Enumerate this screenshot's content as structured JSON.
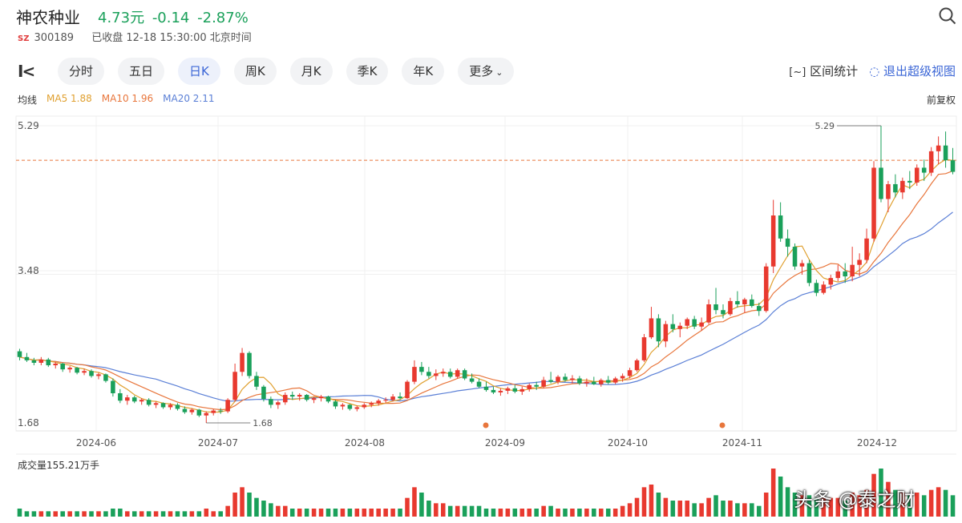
{
  "header": {
    "name": "神农种业",
    "price": "4.73元",
    "change": "-0.14",
    "change_pct": "-2.87%",
    "market": "SZ",
    "code": "300189",
    "status": "已收盘 12-18 15:30:00 北京时间"
  },
  "tabs": [
    "分时",
    "五日",
    "日K",
    "周K",
    "月K",
    "季K",
    "年K",
    "更多"
  ],
  "active_tab": "日K",
  "tools": {
    "range_stats": "区间统计",
    "exit_fullscreen": "退出超级视图"
  },
  "ma": {
    "label": "均线",
    "ma5": "MA5 1.88",
    "ma10": "MA10 1.96",
    "ma20": "MA20 2.11"
  },
  "adjust": "前复权",
  "volume_label": "成交量155.21万手",
  "watermark": "头条 @泰之财",
  "colors": {
    "up": "#e8392f",
    "down": "#1aa05a",
    "ma5": "#e0a030",
    "ma10": "#e8763c",
    "ma20": "#5a7fd6",
    "accent": "#3b66d6",
    "price_down": "#1aa05a"
  },
  "chart_data": {
    "type": "candlestick",
    "ylim": [
      1.68,
      5.29
    ],
    "y_ticks": [
      "5.29",
      "3.48",
      "1.68"
    ],
    "x_ticks": [
      "2024-06",
      "2024-07",
      "2024-08",
      "2024-09",
      "2024-10",
      "2024-11",
      "2024-12"
    ],
    "high_marker": "5.29",
    "low_marker": "1.68",
    "reference_price": 4.87,
    "ohlc": [
      [
        2.55,
        2.58,
        2.44,
        2.48
      ],
      [
        2.48,
        2.53,
        2.42,
        2.44
      ],
      [
        2.44,
        2.47,
        2.38,
        2.41
      ],
      [
        2.41,
        2.48,
        2.38,
        2.45
      ],
      [
        2.45,
        2.47,
        2.36,
        2.38
      ],
      [
        2.38,
        2.42,
        2.34,
        2.4
      ],
      [
        2.4,
        2.41,
        2.3,
        2.33
      ],
      [
        2.33,
        2.37,
        2.29,
        2.35
      ],
      [
        2.35,
        2.36,
        2.27,
        2.29
      ],
      [
        2.29,
        2.34,
        2.26,
        2.31
      ],
      [
        2.31,
        2.33,
        2.23,
        2.25
      ],
      [
        2.25,
        2.29,
        2.21,
        2.27
      ],
      [
        2.27,
        2.28,
        2.17,
        2.19
      ],
      [
        2.19,
        2.22,
        2.0,
        2.04
      ],
      [
        2.04,
        2.09,
        1.92,
        1.95
      ],
      [
        1.95,
        2.02,
        1.9,
        1.99
      ],
      [
        1.99,
        2.01,
        1.92,
        1.94
      ],
      [
        1.94,
        1.98,
        1.9,
        1.96
      ],
      [
        1.96,
        1.98,
        1.88,
        1.9
      ],
      [
        1.9,
        1.94,
        1.86,
        1.92
      ],
      [
        1.92,
        1.93,
        1.85,
        1.87
      ],
      [
        1.87,
        1.92,
        1.84,
        1.9
      ],
      [
        1.9,
        1.92,
        1.83,
        1.85
      ],
      [
        1.85,
        1.88,
        1.79,
        1.81
      ],
      [
        1.81,
        1.86,
        1.78,
        1.84
      ],
      [
        1.84,
        1.85,
        1.75,
        1.77
      ],
      [
        1.77,
        1.82,
        1.68,
        1.8
      ],
      [
        1.8,
        1.85,
        1.77,
        1.83
      ],
      [
        1.83,
        1.86,
        1.79,
        1.82
      ],
      [
        1.82,
        1.98,
        1.8,
        1.96
      ],
      [
        1.96,
        2.4,
        1.94,
        2.3
      ],
      [
        2.3,
        2.59,
        2.25,
        2.53
      ],
      [
        2.53,
        2.55,
        2.22,
        2.25
      ],
      [
        2.25,
        2.3,
        2.08,
        2.12
      ],
      [
        2.12,
        2.14,
        1.94,
        1.97
      ],
      [
        1.97,
        2.0,
        1.86,
        1.9
      ],
      [
        1.9,
        1.95,
        1.85,
        1.93
      ],
      [
        1.93,
        2.05,
        1.9,
        2.02
      ],
      [
        2.02,
        2.06,
        1.96,
        2.0
      ],
      [
        2.0,
        2.04,
        1.95,
        2.02
      ],
      [
        2.02,
        2.03,
        1.94,
        1.96
      ],
      [
        1.96,
        2.0,
        1.92,
        1.98
      ],
      [
        1.98,
        2.02,
        1.94,
        2.0
      ],
      [
        2.0,
        2.01,
        1.92,
        1.94
      ],
      [
        1.94,
        1.96,
        1.85,
        1.88
      ],
      [
        1.88,
        1.92,
        1.84,
        1.9
      ],
      [
        1.9,
        1.91,
        1.83,
        1.85
      ],
      [
        1.85,
        1.89,
        1.82,
        1.87
      ],
      [
        1.87,
        1.92,
        1.85,
        1.9
      ],
      [
        1.9,
        1.94,
        1.87,
        1.92
      ],
      [
        1.92,
        1.97,
        1.89,
        1.95
      ],
      [
        1.95,
        1.99,
        1.92,
        1.96
      ],
      [
        1.96,
        2.03,
        1.94,
        2.0
      ],
      [
        2.0,
        2.05,
        1.96,
        1.98
      ],
      [
        1.98,
        2.2,
        1.97,
        2.18
      ],
      [
        2.18,
        2.44,
        2.15,
        2.36
      ],
      [
        2.36,
        2.42,
        2.26,
        2.3
      ],
      [
        2.3,
        2.36,
        2.22,
        2.25
      ],
      [
        2.25,
        2.33,
        2.2,
        2.28
      ],
      [
        2.28,
        2.34,
        2.24,
        2.3
      ],
      [
        2.3,
        2.34,
        2.22,
        2.24
      ],
      [
        2.24,
        2.34,
        2.22,
        2.32
      ],
      [
        2.32,
        2.34,
        2.2,
        2.22
      ],
      [
        2.22,
        2.28,
        2.16,
        2.18
      ],
      [
        2.18,
        2.22,
        2.1,
        2.12
      ],
      [
        2.12,
        2.18,
        2.06,
        2.08
      ],
      [
        2.08,
        2.12,
        2.03,
        2.05
      ],
      [
        2.05,
        2.1,
        2.01,
        2.07
      ],
      [
        2.07,
        2.12,
        2.03,
        2.1
      ],
      [
        2.1,
        2.14,
        2.04,
        2.06
      ],
      [
        2.06,
        2.12,
        2.02,
        2.09
      ],
      [
        2.09,
        2.16,
        2.06,
        2.14
      ],
      [
        2.14,
        2.18,
        2.08,
        2.12
      ],
      [
        2.12,
        2.24,
        2.1,
        2.2
      ],
      [
        2.2,
        2.3,
        2.16,
        2.18
      ],
      [
        2.18,
        2.26,
        2.15,
        2.24
      ],
      [
        2.24,
        2.28,
        2.18,
        2.2
      ],
      [
        2.2,
        2.26,
        2.16,
        2.22
      ],
      [
        2.22,
        2.25,
        2.14,
        2.16
      ],
      [
        2.16,
        2.22,
        2.12,
        2.18
      ],
      [
        2.18,
        2.24,
        2.14,
        2.15
      ],
      [
        2.15,
        2.22,
        2.12,
        2.2
      ],
      [
        2.2,
        2.25,
        2.15,
        2.17
      ],
      [
        2.17,
        2.24,
        2.15,
        2.22
      ],
      [
        2.22,
        2.28,
        2.18,
        2.25
      ],
      [
        2.25,
        2.35,
        2.22,
        2.32
      ],
      [
        2.32,
        2.46,
        2.3,
        2.44
      ],
      [
        2.44,
        2.76,
        2.42,
        2.72
      ],
      [
        2.72,
        3.09,
        2.7,
        2.95
      ],
      [
        2.95,
        3.0,
        2.6,
        2.67
      ],
      [
        2.67,
        2.92,
        2.6,
        2.88
      ],
      [
        2.88,
        3.0,
        2.78,
        2.82
      ],
      [
        2.82,
        2.9,
        2.72,
        2.86
      ],
      [
        2.86,
        2.96,
        2.82,
        2.94
      ],
      [
        2.94,
        2.98,
        2.82,
        2.85
      ],
      [
        2.85,
        2.96,
        2.8,
        2.9
      ],
      [
        2.9,
        3.18,
        2.88,
        3.12
      ],
      [
        3.12,
        3.32,
        3.0,
        3.05
      ],
      [
        3.05,
        3.12,
        2.95,
        3.0
      ],
      [
        3.0,
        3.2,
        2.98,
        3.16
      ],
      [
        3.16,
        3.28,
        3.08,
        3.12
      ],
      [
        3.12,
        3.2,
        3.02,
        3.18
      ],
      [
        3.18,
        3.24,
        3.08,
        3.1
      ],
      [
        3.1,
        3.14,
        2.98,
        3.04
      ],
      [
        3.04,
        3.62,
        3.02,
        3.58
      ],
      [
        3.58,
        4.39,
        3.5,
        4.2
      ],
      [
        4.2,
        4.36,
        3.88,
        3.92
      ],
      [
        3.92,
        4.03,
        3.7,
        3.82
      ],
      [
        3.82,
        3.86,
        3.54,
        3.58
      ],
      [
        3.58,
        3.66,
        3.48,
        3.62
      ],
      [
        3.62,
        3.66,
        3.34,
        3.38
      ],
      [
        3.38,
        3.42,
        3.22,
        3.26
      ],
      [
        3.26,
        3.4,
        3.24,
        3.36
      ],
      [
        3.36,
        3.48,
        3.3,
        3.44
      ],
      [
        3.44,
        3.6,
        3.4,
        3.52
      ],
      [
        3.52,
        3.62,
        3.38,
        3.46
      ],
      [
        3.46,
        3.82,
        3.4,
        3.6
      ],
      [
        3.6,
        3.74,
        3.46,
        3.66
      ],
      [
        3.66,
        4.04,
        3.62,
        3.92
      ],
      [
        3.92,
        4.86,
        3.88,
        4.78
      ],
      [
        4.78,
        5.29,
        4.36,
        4.4
      ],
      [
        4.4,
        4.62,
        4.24,
        4.58
      ],
      [
        4.58,
        4.7,
        4.42,
        4.48
      ],
      [
        4.48,
        4.66,
        4.4,
        4.62
      ],
      [
        4.62,
        4.74,
        4.52,
        4.6
      ],
      [
        4.6,
        4.82,
        4.56,
        4.78
      ],
      [
        4.78,
        4.88,
        4.62,
        4.72
      ],
      [
        4.72,
        5.03,
        4.68,
        4.98
      ],
      [
        4.98,
        5.16,
        4.82,
        5.05
      ],
      [
        5.05,
        5.22,
        4.78,
        4.87
      ],
      [
        4.87,
        5.02,
        4.7,
        4.73
      ]
    ],
    "volume": [
      3,
      2,
      2,
      2,
      2,
      2,
      2,
      2,
      2,
      2,
      2,
      2,
      2,
      3,
      3,
      2,
      2,
      2,
      2,
      2,
      2,
      2,
      2,
      2,
      2,
      2,
      3,
      2,
      2,
      4,
      9,
      11,
      9,
      7,
      6,
      5,
      4,
      4,
      3,
      3,
      3,
      3,
      3,
      3,
      3,
      3,
      3,
      3,
      3,
      3,
      3,
      3,
      3,
      3,
      7,
      11,
      9,
      6,
      5,
      5,
      4,
      4,
      4,
      4,
      4,
      3,
      3,
      3,
      3,
      3,
      3,
      3,
      3,
      4,
      4,
      3,
      3,
      3,
      3,
      3,
      3,
      3,
      3,
      3,
      4,
      5,
      7,
      11,
      12,
      9,
      7,
      6,
      6,
      6,
      5,
      5,
      7,
      8,
      6,
      6,
      5,
      5,
      5,
      4,
      9,
      18,
      15,
      11,
      9,
      8,
      8,
      7,
      7,
      7,
      7,
      6,
      9,
      8,
      10,
      16,
      18,
      13,
      10,
      9,
      8,
      9,
      8,
      10,
      11,
      10,
      8
    ]
  }
}
